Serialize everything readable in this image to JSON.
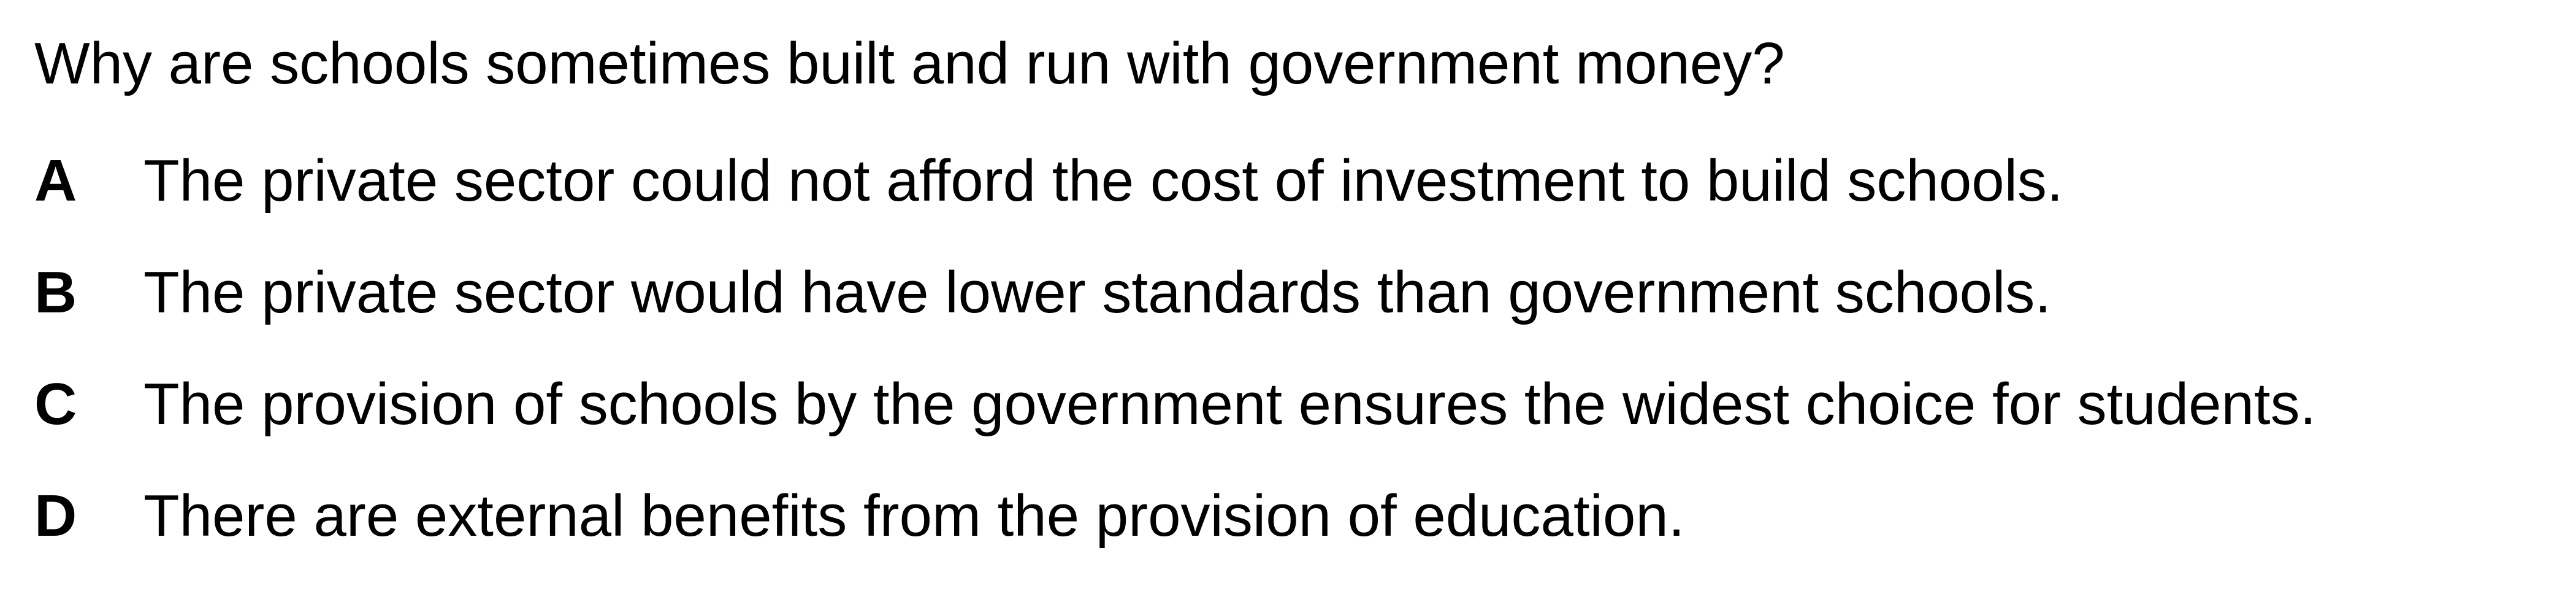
{
  "question": "Why are schools sometimes built and run with government money?",
  "options": [
    {
      "letter": "A",
      "text": "The private sector could not afford the cost of investment to build schools."
    },
    {
      "letter": "B",
      "text": "The private sector would have lower standards than government schools."
    },
    {
      "letter": "C",
      "text": "The provision of schools by the government ensures the widest choice for students."
    },
    {
      "letter": "D",
      "text": "There are external benefits from the provision of education."
    }
  ]
}
